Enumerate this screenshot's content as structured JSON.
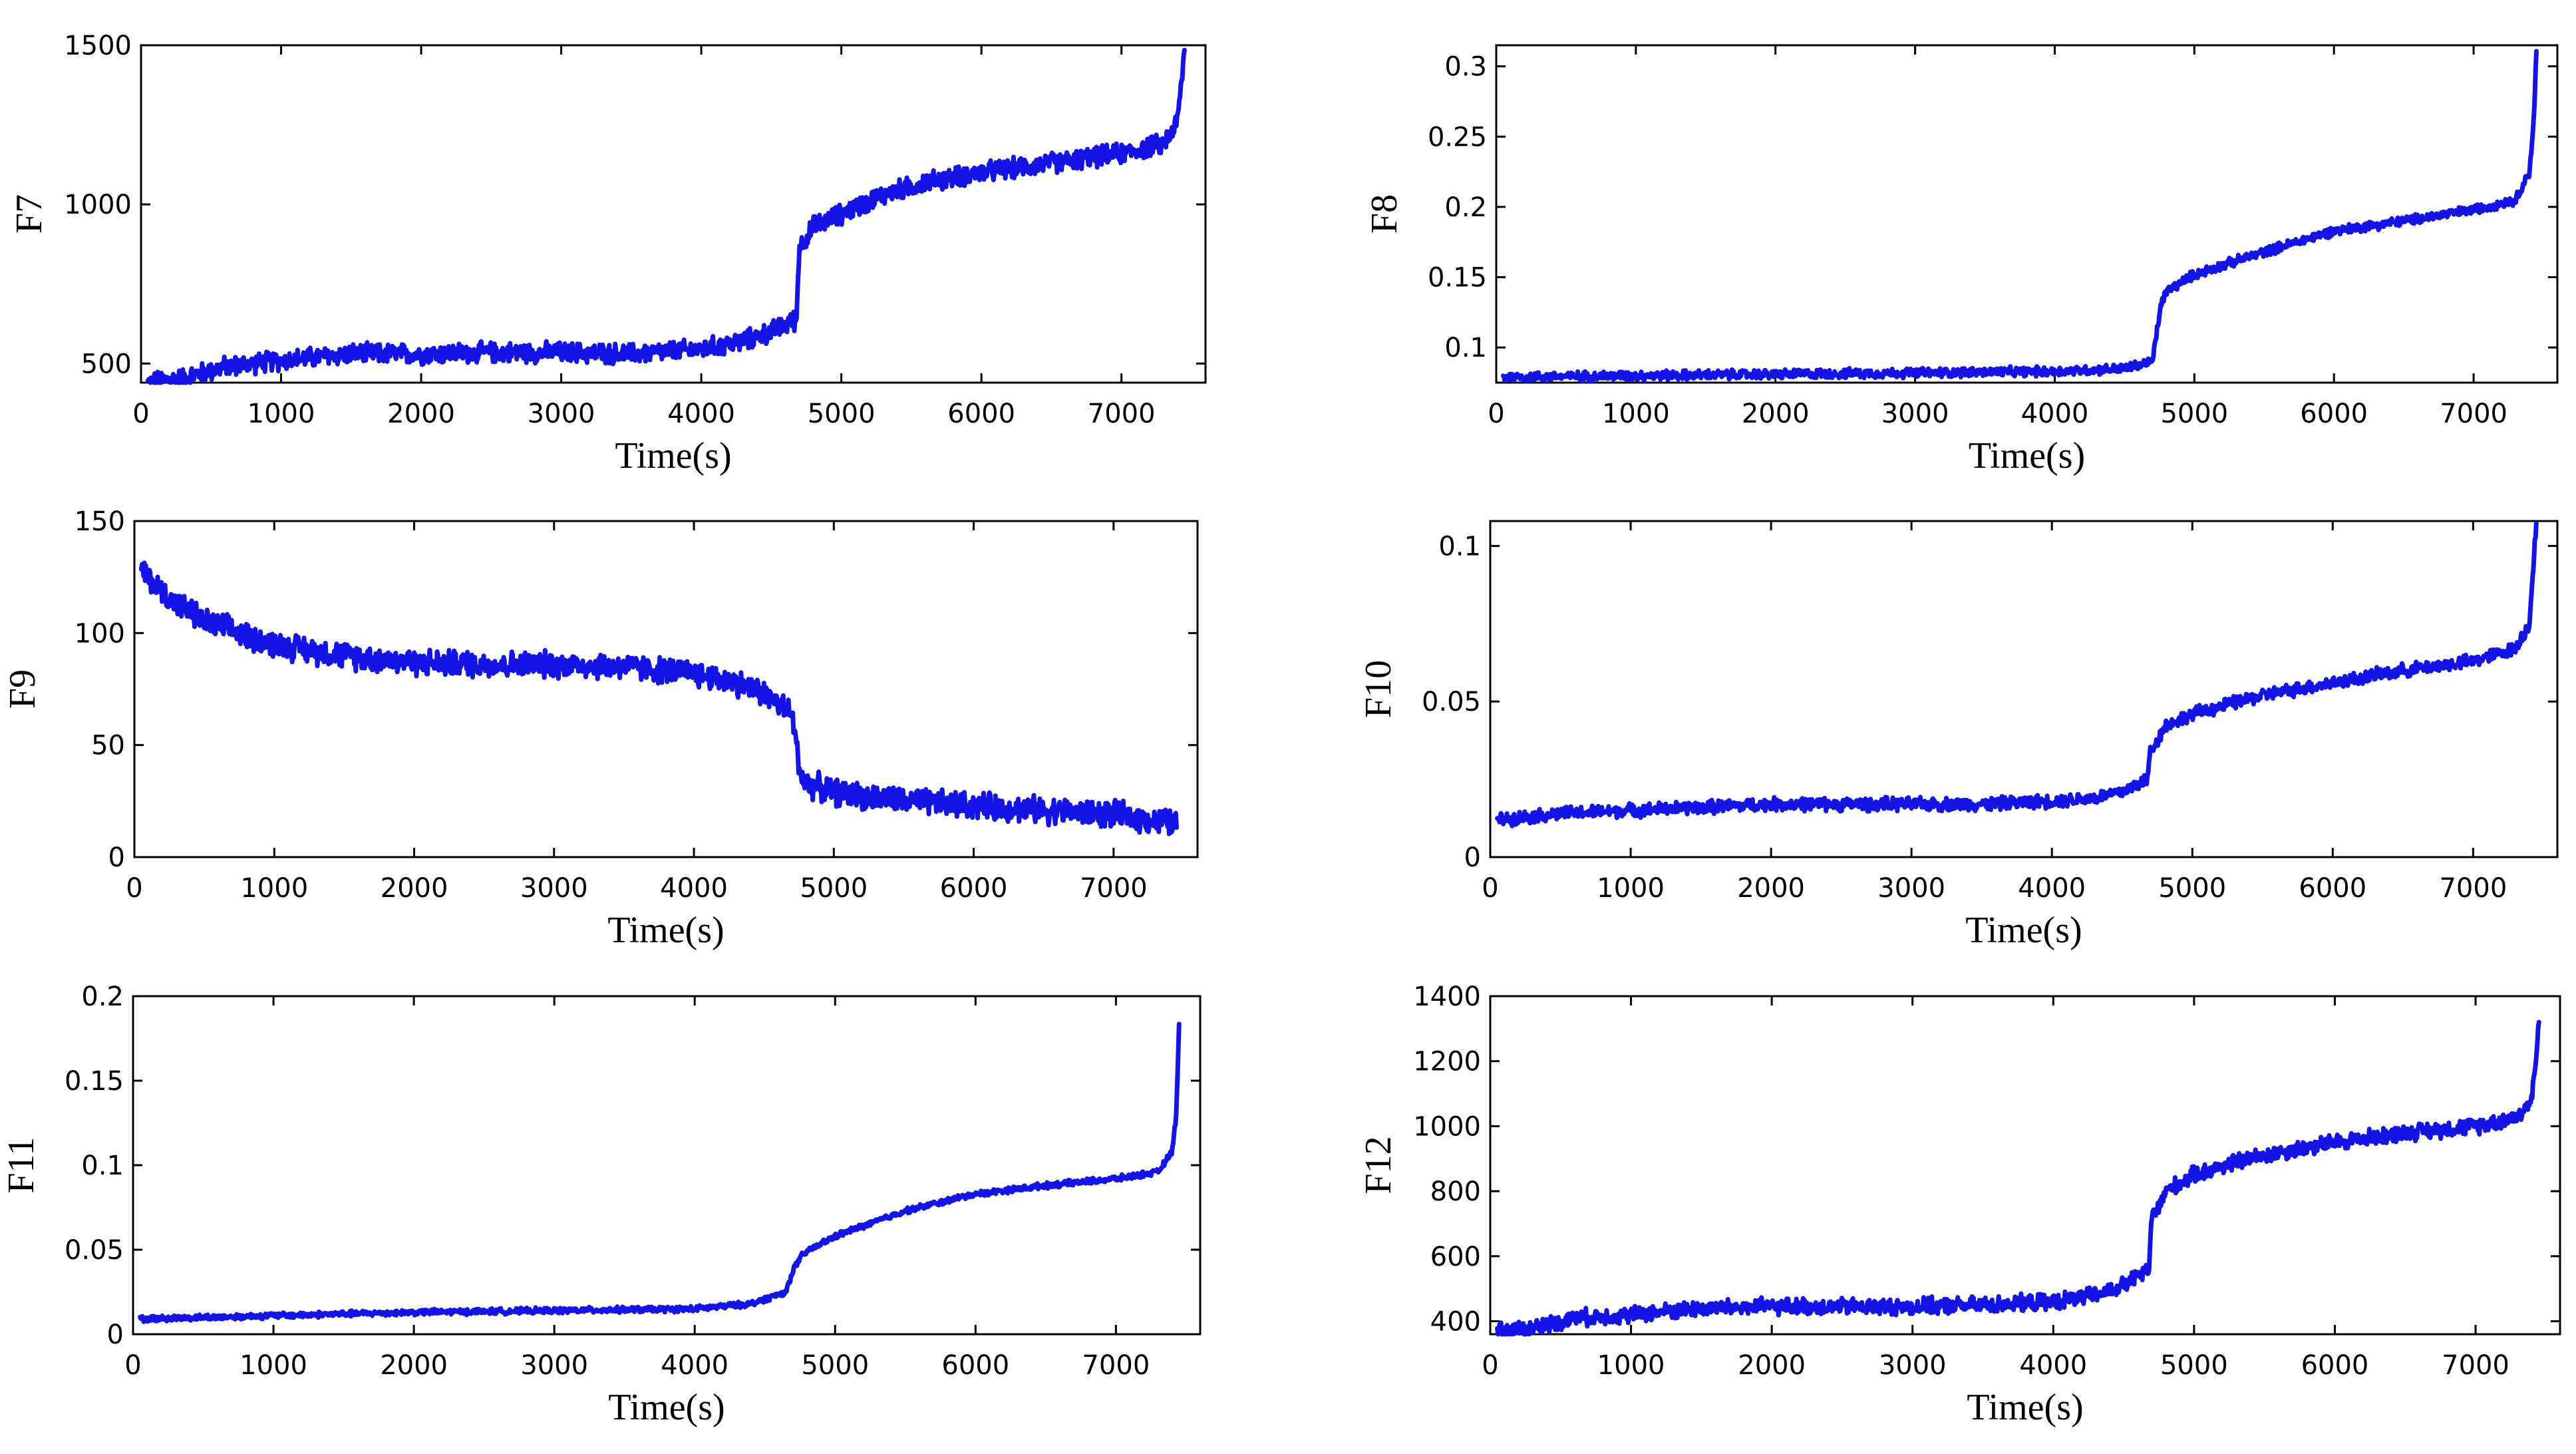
{
  "figure": {
    "rows": 3,
    "cols": 2,
    "line_color": "#1414e6"
  },
  "chart_data": [
    {
      "type": "line",
      "ylabel": "F7",
      "xlabel": "Time(s)",
      "xlim": [
        0,
        7600
      ],
      "ylim": [
        440,
        1500
      ],
      "xticks": [
        0,
        1000,
        2000,
        3000,
        4000,
        5000,
        6000,
        7000
      ],
      "yticks": [
        500,
        1000,
        1500
      ],
      "ytick_labels": [
        "500",
        "1000",
        "1500"
      ],
      "x": [
        50,
        300,
        600,
        1000,
        1500,
        2000,
        2500,
        3000,
        3500,
        4000,
        4300,
        4500,
        4680,
        4700,
        4760,
        4800,
        5000,
        5300,
        5600,
        6000,
        6500,
        7000,
        7300,
        7400,
        7450
      ],
      "values": [
        440,
        455,
        490,
        510,
        530,
        530,
        535,
        535,
        530,
        545,
        570,
        600,
        640,
        870,
        900,
        930,
        970,
        1030,
        1070,
        1100,
        1130,
        1160,
        1190,
        1260,
        1480
      ],
      "noise": 38
    },
    {
      "type": "line",
      "ylabel": "F8",
      "xlabel": "Time(s)",
      "xlim": [
        0,
        7600
      ],
      "ylim": [
        0.075,
        0.315
      ],
      "xticks": [
        0,
        1000,
        2000,
        3000,
        4000,
        5000,
        6000,
        7000
      ],
      "yticks": [
        0.1,
        0.15,
        0.2,
        0.25,
        0.3
      ],
      "ytick_labels": [
        "0.1",
        "0.15",
        "0.2",
        "0.25",
        "0.3"
      ],
      "x": [
        50,
        1000,
        2000,
        3000,
        4000,
        4500,
        4700,
        4760,
        4800,
        5000,
        5500,
        6000,
        6500,
        7000,
        7300,
        7400,
        7430,
        7450
      ],
      "values": [
        0.079,
        0.08,
        0.081,
        0.082,
        0.083,
        0.085,
        0.09,
        0.13,
        0.14,
        0.152,
        0.168,
        0.183,
        0.19,
        0.198,
        0.205,
        0.225,
        0.26,
        0.31
      ],
      "noise": 0.004
    },
    {
      "type": "line",
      "ylabel": "F9",
      "xlabel": "Time(s)",
      "xlim": [
        0,
        7600
      ],
      "ylim": [
        0,
        150
      ],
      "xticks": [
        0,
        1000,
        2000,
        3000,
        4000,
        5000,
        6000,
        7000
      ],
      "yticks": [
        0,
        50,
        100,
        150
      ],
      "ytick_labels": [
        "0",
        "50",
        "100",
        "150"
      ],
      "x": [
        50,
        200,
        500,
        1000,
        1500,
        2000,
        2500,
        3000,
        3500,
        4000,
        4300,
        4500,
        4700,
        4760,
        4800,
        5000,
        5500,
        6000,
        6500,
        7000,
        7450
      ],
      "values": [
        128,
        118,
        105,
        95,
        90,
        87,
        86,
        86,
        85,
        82,
        78,
        73,
        64,
        38,
        33,
        29,
        25,
        23,
        21,
        19,
        15
      ],
      "noise": 7
    },
    {
      "type": "line",
      "ylabel": "F10",
      "xlabel": "Time(s)",
      "xlim": [
        0,
        7600
      ],
      "ylim": [
        0,
        0.108
      ],
      "xticks": [
        0,
        1000,
        2000,
        3000,
        4000,
        5000,
        6000,
        7000
      ],
      "yticks": [
        0,
        0.05,
        0.1
      ],
      "ytick_labels": [
        "0",
        "0.05",
        "0.1"
      ],
      "x": [
        50,
        500,
        1000,
        1500,
        2000,
        2500,
        3000,
        3500,
        4000,
        4300,
        4500,
        4680,
        4700,
        4760,
        4800,
        5000,
        5500,
        6000,
        6500,
        7000,
        7300,
        7400,
        7450
      ],
      "values": [
        0.012,
        0.014,
        0.015,
        0.016,
        0.017,
        0.017,
        0.017,
        0.017,
        0.018,
        0.019,
        0.021,
        0.025,
        0.034,
        0.038,
        0.042,
        0.046,
        0.052,
        0.056,
        0.06,
        0.063,
        0.067,
        0.075,
        0.107
      ],
      "noise": 0.0025
    },
    {
      "type": "line",
      "ylabel": "F11",
      "xlabel": "Time(s)",
      "xlim": [
        0,
        7600
      ],
      "ylim": [
        0,
        0.2
      ],
      "xticks": [
        0,
        1000,
        2000,
        3000,
        4000,
        5000,
        6000,
        7000
      ],
      "yticks": [
        0,
        0.05,
        0.1,
        0.15,
        0.2
      ],
      "ytick_labels": [
        "0",
        "0.05",
        "0.1",
        "0.15",
        "0.2"
      ],
      "x": [
        50,
        1000,
        2000,
        3000,
        4000,
        4400,
        4650,
        4700,
        4760,
        4800,
        5000,
        5500,
        6000,
        6500,
        7000,
        7300,
        7400,
        7430,
        7450
      ],
      "values": [
        0.009,
        0.011,
        0.013,
        0.014,
        0.015,
        0.018,
        0.025,
        0.038,
        0.046,
        0.049,
        0.058,
        0.073,
        0.083,
        0.088,
        0.092,
        0.096,
        0.108,
        0.13,
        0.185
      ],
      "noise": 0.002
    },
    {
      "type": "line",
      "ylabel": "F12",
      "xlabel": "Time(s)",
      "xlim": [
        0,
        7600
      ],
      "ylim": [
        360,
        1400
      ],
      "xticks": [
        0,
        1000,
        2000,
        3000,
        4000,
        5000,
        6000,
        7000
      ],
      "yticks": [
        400,
        600,
        800,
        1000,
        1200,
        1400
      ],
      "ytick_labels": [
        "400",
        "600",
        "800",
        "1000",
        "1200",
        "1400"
      ],
      "x": [
        50,
        300,
        600,
        1000,
        1500,
        2000,
        2500,
        3000,
        3500,
        4000,
        4300,
        4500,
        4680,
        4700,
        4760,
        4800,
        5000,
        5300,
        5600,
        6000,
        6500,
        7000,
        7300,
        7400,
        7450
      ],
      "values": [
        370,
        380,
        410,
        420,
        440,
        445,
        445,
        445,
        450,
        460,
        480,
        510,
        560,
        720,
        760,
        800,
        850,
        890,
        920,
        950,
        980,
        1000,
        1030,
        1080,
        1310
      ],
      "noise": 30
    }
  ]
}
